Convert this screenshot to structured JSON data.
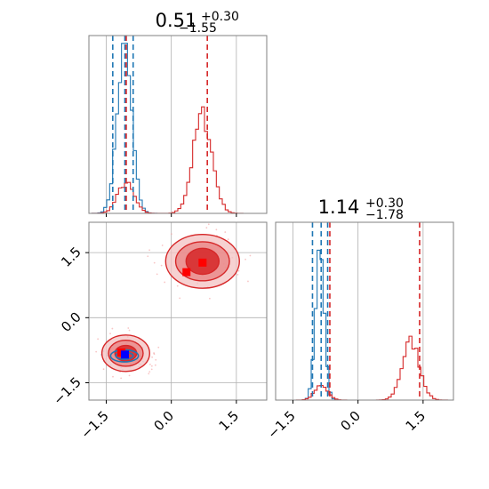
{
  "chart_data": {
    "type": "corner",
    "colors": {
      "blue": "#1f77b4",
      "red": "#d62728",
      "grid": "#b0b0b0",
      "frame": "#808080",
      "blue_marker": "#0000ff",
      "red_marker": "#ff0000"
    },
    "x_range": [
      -1.9,
      2.2
    ],
    "y_range": [
      -1.9,
      2.2
    ],
    "ticks": [
      -1.5,
      0.0,
      1.5
    ],
    "tick_labels": [
      "−1.5",
      "0.0",
      "1.5"
    ],
    "titles": [
      {
        "base": "0.51",
        "sup": "+0.30",
        "sub": "−1.55"
      },
      {
        "base": "1.14",
        "sup": "+0.30",
        "sub": "−1.78"
      }
    ],
    "marginals": [
      {
        "series": [
          {
            "color": "blue",
            "peaks": [
              {
                "mu": -1.08,
                "sigma": 0.17,
                "height": 0.92
              }
            ]
          },
          {
            "color": "red",
            "peaks": [
              {
                "mu": -1.05,
                "sigma": 0.19,
                "height": 0.17
              },
              {
                "mu": 0.72,
                "sigma": 0.22,
                "height": 0.55
              }
            ]
          }
        ],
        "quantile_lines": [
          {
            "color": "blue",
            "values": [
              -1.35,
              -1.07,
              -0.88
            ]
          },
          {
            "color": "red",
            "values": [
              -1.04,
              0.83
            ]
          }
        ]
      },
      {
        "series": [
          {
            "color": "blue",
            "peaks": [
              {
                "mu": -0.88,
                "sigma": 0.1,
                "height": 0.9
              }
            ]
          },
          {
            "color": "red",
            "peaks": [
              {
                "mu": -0.85,
                "sigma": 0.15,
                "height": 0.08
              },
              {
                "mu": 1.22,
                "sigma": 0.2,
                "height": 0.33
              }
            ]
          }
        ],
        "quantile_lines": [
          {
            "color": "blue",
            "values": [
              -1.05,
              -0.85,
              -0.7
            ]
          },
          {
            "color": "red",
            "values": [
              -0.65,
              1.42
            ]
          }
        ]
      }
    ],
    "joint": {
      "blue_cluster": {
        "center": [
          -1.08,
          -0.88
        ],
        "rx": [
          0.32,
          0.2
        ],
        "ry": [
          0.14,
          0.08
        ]
      },
      "red_clusters": [
        {
          "center": [
            -1.05,
            -0.82
          ],
          "levels": [
            [
              0.55,
              0.42
            ],
            [
              0.4,
              0.3
            ],
            [
              0.25,
              0.18
            ]
          ]
        },
        {
          "center": [
            0.72,
            1.3
          ],
          "levels": [
            [
              0.85,
              0.62
            ],
            [
              0.62,
              0.45
            ],
            [
              0.38,
              0.3
            ]
          ]
        }
      ],
      "markers": [
        {
          "color": "red_marker",
          "x": 0.35,
          "y": 1.05
        },
        {
          "color": "red_marker",
          "x": 0.72,
          "y": 1.27
        },
        {
          "color": "red_marker",
          "x": -1.15,
          "y": -0.8
        },
        {
          "color": "blue_marker",
          "x": -1.07,
          "y": -0.85
        }
      ]
    }
  }
}
